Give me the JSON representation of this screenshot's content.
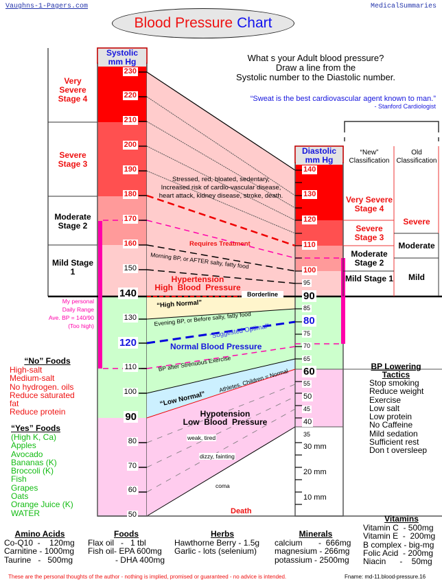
{
  "header": {
    "site_link": "Vaughns-1-Pagers.com",
    "section": "MedicalSummaries",
    "title_part1": "Blood Pressure",
    "title_part2": "Chart"
  },
  "instructions": {
    "line1": "What s your Adult blood pressure?",
    "line2": "Draw a line from the",
    "line3": "Systolic number to the Diastolic number."
  },
  "quote": {
    "text": "“Sweat is the best cardiovascular agent known to man.”",
    "attribution": "- Stanford Cardiologist"
  },
  "systolic_scale": {
    "header_line1": "Systolic",
    "header_line2": "mm Hg",
    "ticks": [
      "230",
      "220",
      "210",
      "200",
      "190",
      "180",
      "170",
      "160",
      "150",
      "140",
      "130",
      "120",
      "110",
      "100",
      "90",
      "80",
      "70",
      "60",
      "50"
    ]
  },
  "diastolic_scale": {
    "header_line1": "Diastolic",
    "header_line2": "mm Hg",
    "ticks": [
      "140",
      "130",
      "120",
      "110",
      "100",
      "95",
      "90",
      "85",
      "80",
      "75",
      "70",
      "65",
      "60",
      "55",
      "50",
      "45",
      "40",
      "35",
      "30 mm",
      "20 mm",
      "10 mm"
    ]
  },
  "left_classification": [
    {
      "label": "Very Severe Stage 4"
    },
    {
      "label": "Severe Stage 3"
    },
    {
      "label": "Moderate Stage 2"
    },
    {
      "label": "Mild Stage 1"
    }
  ],
  "right_classification": {
    "new_header": "“New” Classification",
    "old_header": "Old Classification",
    "new": [
      "Very Severe Stage 4",
      "Severe Stage 3",
      "Moderate Stage 2",
      "Mild Stage 1"
    ],
    "old": [
      "Severe",
      "Moderate",
      "Mild"
    ]
  },
  "zones": {
    "hypertension_desc1": "Stressed, red, bloated, sedentary,",
    "hypertension_desc2": "Increased risk of cardio-vascular disease,",
    "hypertension_desc3": "heart attack, kidney disease, stroke, death.",
    "requires_treatment": "Requires Treatment",
    "morning_bp": "Morning BP, or AFTER salty, fatty food",
    "hypertension_title1": "Hypertension",
    "hypertension_title2": "High  Blood  Pressure",
    "borderline": "Borderline",
    "high_normal": "“High Normal”",
    "evening_bp": "Evening BP, or Before salty, fatty food",
    "suggested_optimal": "“Suggested Optimal”",
    "normal_bp": "Normal Blood Pressure",
    "after_exercise": "BP after Strenuous Exercise",
    "athletes": "Athletes, Children = Normal",
    "low_normal": "“Low Normal”",
    "hypotension_title1": "Hypotension",
    "hypotension_title2": "Low  Blood  Pressure",
    "weak": "weak, tired",
    "dizzy": "dizzy, fainting",
    "coma": "coma",
    "death": "Death"
  },
  "personal_range": {
    "line1": "My personal",
    "line2": "Daily Range",
    "line3": "Ave. BP = 140/90",
    "line4": "(Too high)"
  },
  "no_foods": {
    "title": "“No” Foods",
    "items": [
      "High-salt",
      "Medium-salt",
      "No hydrogen. oils",
      "Reduce saturated fat",
      "Reduce protein"
    ]
  },
  "yes_foods": {
    "title": "“Yes” Foods",
    "items": [
      "(High K, Ca)",
      "Apples",
      "Avocado",
      "Bananas (K)",
      "Broccoli (K)",
      "Fish",
      "Grapes",
      "Oats",
      "Orange Juice (K)",
      "WATER"
    ]
  },
  "bp_tactics": {
    "title1": "BP Lowering",
    "title2": "Tactics",
    "items": [
      "Stop smoking",
      "Reduce weight",
      "Exercise",
      "Low salt",
      "Low protein",
      "No Caffeine",
      "Mild sedation",
      "Sufficient rest",
      "Don t oversleep"
    ]
  },
  "supplements": {
    "amino_title": "Amino Acids",
    "amino": [
      "Co-Q10  -    120mg",
      "Carnitine - 1000mg",
      "Taurine   -   500mg"
    ],
    "foods_title": "Foods",
    "foods": [
      "Flax oil   -   1 tbl",
      "Fish oil- EPA 600mg",
      "- DHA 400mg"
    ],
    "herbs_title": "Herbs",
    "herbs": [
      "Hawthorne Berry - 1.5g",
      "Garlic - lots (selenium)"
    ],
    "minerals_title": "Minerals",
    "minerals": [
      "calcium       -  666mg",
      "magnesium - 266mg",
      "potassium - 2500mg"
    ],
    "vitamins_title": "Vitamins",
    "vitamins": [
      "Vitamin C  - 500mg",
      "Vitamin E  -  200mg",
      "B complex - big-mg",
      "Folic Acid  - 200mg",
      "Niacin      -    50mg"
    ]
  },
  "footer": {
    "disclaimer": "These are the personal thoughts of the author - nothing is implied, promised or guaranteed - no advice is intended.",
    "fname": "Fname: md-11.blood-pressure.16"
  },
  "colors": {
    "stage4": "#ff0000",
    "stage3": "#ff5050",
    "stage2": "#ff9a9a",
    "stage1": "#ffcccc",
    "high_normal": "#fff5cc",
    "normal": "#ccffcc",
    "low_normal": "#ccf0ff",
    "hypotension": "#ffccee",
    "personal_range": "#ff00aa",
    "optimal_blue": "#0000dd"
  },
  "chart_data": {
    "type": "table",
    "title": "Blood Pressure Chart",
    "xlabel": "",
    "ylabel": "mm Hg",
    "systolic_axis": {
      "range": [
        50,
        230
      ],
      "ticks": [
        230,
        220,
        210,
        200,
        190,
        180,
        170,
        160,
        150,
        140,
        130,
        120,
        110,
        100,
        90,
        80,
        70,
        60,
        50
      ]
    },
    "diastolic_axis": {
      "range": [
        0,
        140
      ],
      "ticks": [
        140,
        130,
        120,
        110,
        100,
        95,
        90,
        85,
        80,
        75,
        70,
        65,
        60,
        55,
        50,
        45,
        40,
        35,
        30,
        20,
        10
      ]
    },
    "zones": [
      {
        "name": "Very Severe Stage 4",
        "systolic": [
          210,
          230
        ],
        "diastolic": [
          120,
          140
        ]
      },
      {
        "name": "Severe Stage 3",
        "systolic": [
          180,
          210
        ],
        "diastolic": [
          110,
          120
        ]
      },
      {
        "name": "Moderate Stage 2",
        "systolic": [
          160,
          180
        ],
        "diastolic": [
          100,
          110
        ]
      },
      {
        "name": "Mild Stage 1",
        "systolic": [
          140,
          160
        ],
        "diastolic": [
          90,
          100
        ]
      },
      {
        "name": "High Normal",
        "systolic": [
          130,
          140
        ],
        "diastolic": [
          85,
          90
        ]
      },
      {
        "name": "Normal Blood Pressure",
        "systolic": [
          100,
          130
        ],
        "diastolic": [
          65,
          85
        ]
      },
      {
        "name": "Low Normal",
        "systolic": [
          90,
          100
        ],
        "diastolic": [
          60,
          65
        ]
      },
      {
        "name": "Hypotension",
        "systolic": [
          50,
          90
        ],
        "diastolic": [
          35,
          60
        ]
      }
    ],
    "old_classification": [
      {
        "name": "Severe",
        "diastolic": [
          115,
          140
        ]
      },
      {
        "name": "Moderate",
        "diastolic": [
          105,
          115
        ]
      },
      {
        "name": "Mild",
        "diastolic": [
          90,
          105
        ]
      }
    ],
    "reference_lines": [
      {
        "name": "Requires Treatment",
        "systolic": 180,
        "diastolic": 110
      },
      {
        "name": "Morning BP, or AFTER salty, fatty food",
        "systolic": 160,
        "diastolic": 100
      },
      {
        "name": "Borderline",
        "systolic": 140,
        "diastolic": 90
      },
      {
        "name": "Suggested Optimal",
        "systolic": 120,
        "diastolic": 80
      },
      {
        "name": "BP after Strenuous Exercise",
        "systolic": 110,
        "diastolic": 70
      },
      {
        "name": "Personal range (dashed magenta)",
        "systolic": 170,
        "diastolic": 103
      }
    ],
    "personal_range": {
      "systolic": [
        110,
        170
      ],
      "diastolic": [
        70,
        103
      ],
      "average": "140/90"
    }
  }
}
